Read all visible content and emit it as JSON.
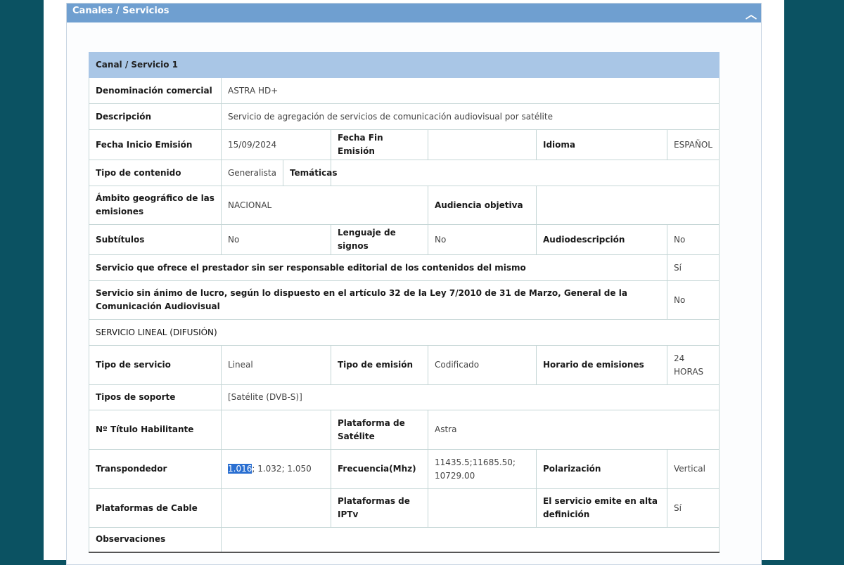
{
  "section": {
    "title": "Canales / Servicios",
    "collapse_icon": "chevron-up-icon"
  },
  "table": {
    "title": "Canal / Servicio 1",
    "denominacion_label": "Denominación comercial",
    "denominacion": "ASTRA HD+",
    "descripcion_label": "Descripción",
    "descripcion": "Servicio de agregación de servicios de comunicación audiovisual por satélite",
    "fecha_inicio_label": "Fecha Inicio Emisión",
    "fecha_inicio": "15/09/2024",
    "fecha_fin_label": "Fecha Fin Emisión",
    "fecha_fin": "",
    "idioma_label": "Idioma",
    "idioma": "ESPAÑOL",
    "tipo_contenido_label": "Tipo de contenido",
    "tipo_contenido": "Generalista",
    "tematicas_label": "Temáticas",
    "tematicas": "",
    "ambito_label": "Ámbito geográfico de las emisiones",
    "ambito": "NACIONAL",
    "audiencia_label": "Audiencia objetiva",
    "audiencia": "",
    "subtitulos_label": "Subtítulos",
    "subtitulos": "No",
    "signos_label": "Lenguaje de signos",
    "signos": "No",
    "audiodesc_label": "Audiodescripción",
    "audiodesc": "No",
    "no_responsable_label": "Servicio que ofrece el prestador sin ser responsable editorial de los contenidos del mismo",
    "no_responsable": "Sí",
    "sin_lucro_label": "Servicio sin ánimo de lucro, según lo dispuesto en el artículo 32 de la Ley 7/2010 de 31 de Marzo, General de la Comunicación Audiovisual",
    "sin_lucro": "No",
    "lineal_heading": "SERVICIO LINEAL (DIFUSIÓN)",
    "tipo_servicio_label": "Tipo de servicio",
    "tipo_servicio": "Lineal",
    "tipo_emision_label": "Tipo de emisión",
    "tipo_emision": "Codificado",
    "horario_label": "Horario de emisiones",
    "horario": "24 HORAS",
    "soporte_label": "Tipos de soporte",
    "soporte": "[Satélite (DVB-S)]",
    "titulo_label": "Nº Título Habilitante",
    "titulo": "",
    "plat_sat_label": "Plataforma de Satélite",
    "plat_sat": "Astra",
    "transp_label": "Transpondedor",
    "transp_selected": "1.016",
    "transp_rest": "; 1.032; 1.050",
    "frec_label": "Frecuencia(Mhz)",
    "frec": "11435.5;11685.50; 10729.00",
    "polar_label": "Polarización",
    "polar": "Vertical",
    "cable_label": "Plataformas de Cable",
    "cable": "",
    "iptv_label": "Plataformas de IPTv",
    "iptv": "",
    "hd_label": "El servicio emite en alta definición",
    "hd": "Sí",
    "obs_label": "Observaciones",
    "obs": ""
  }
}
